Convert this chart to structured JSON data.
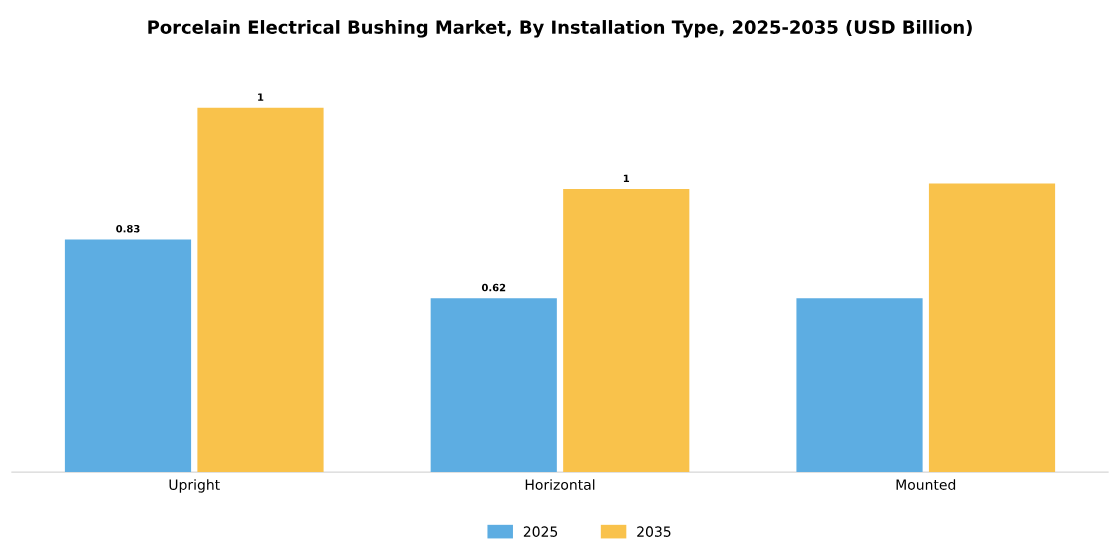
{
  "chart_data": {
    "type": "bar",
    "title": "Porcelain Electrical Bushing Market, By Installation Type, 2025-2035 (USD Billion)",
    "categories": [
      "Upright",
      "Horizontal",
      "Mounted"
    ],
    "series": [
      {
        "name": "2025",
        "color": "#5dade2",
        "values": [
          0.83,
          0.62,
          0.62
        ],
        "value_labels": [
          "0.83",
          "0.62",
          null
        ]
      },
      {
        "name": "2035",
        "color": "#f9c24b",
        "values": [
          1.3,
          1.01,
          1.03
        ],
        "value_labels": [
          "1",
          "1",
          null
        ]
      }
    ],
    "legend": "bottom"
  }
}
